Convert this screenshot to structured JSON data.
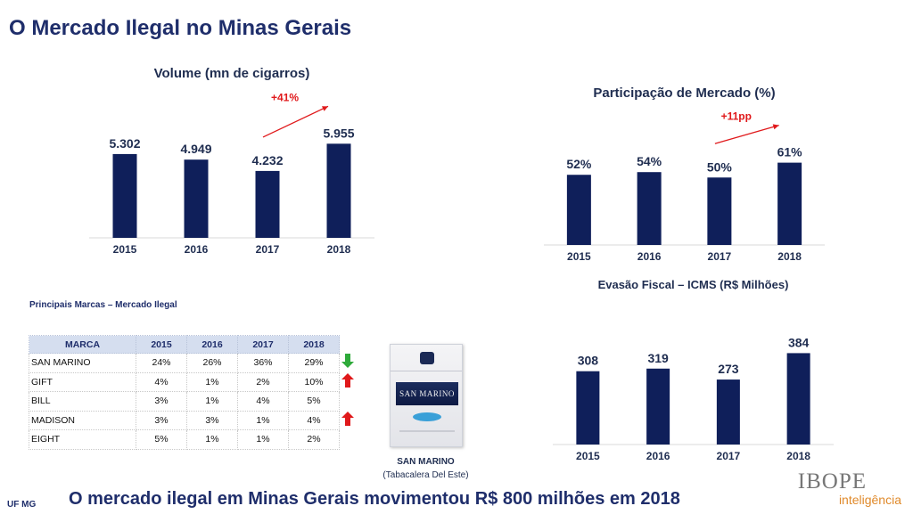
{
  "page": {
    "title": "O Mercado Ilegal no Minas Gerais",
    "footer_left": "UF MG",
    "footer_message": "O mercado ilegal em Minas Gerais movimentou R$ 800 milhões em 2018"
  },
  "chart_data": [
    {
      "id": "volume",
      "type": "bar",
      "title": "Volume (mn de cigarros)",
      "categories": [
        "2015",
        "2016",
        "2017",
        "2018"
      ],
      "values": [
        5302,
        4949,
        4232,
        5955
      ],
      "value_labels": [
        "5.302",
        "4.949",
        "4.232",
        "5.955"
      ],
      "ylim": [
        0,
        6650
      ],
      "annotation": "+41%",
      "bar_color": "#0f1f5a",
      "grid": false
    },
    {
      "id": "participacao",
      "type": "bar",
      "title": "Participação de Mercado (%)",
      "categories": [
        "2015",
        "2016",
        "2017",
        "2018"
      ],
      "values": [
        52,
        54,
        50,
        61
      ],
      "value_labels": [
        "52%",
        "54%",
        "50%",
        "61%"
      ],
      "ylim": [
        0,
        68
      ],
      "annotation": "+11pp",
      "bar_color": "#0f1f5a",
      "grid": false
    },
    {
      "id": "evasao",
      "type": "bar",
      "title": "Evasão Fiscal – ICMS (R$ Milhões)",
      "categories": [
        "2015",
        "2016",
        "2017",
        "2018"
      ],
      "values": [
        308,
        319,
        273,
        384
      ],
      "value_labels": [
        "308",
        "319",
        "273",
        "384"
      ],
      "ylim": [
        0,
        423
      ],
      "bar_color": "#0f1f5a",
      "grid": false
    },
    {
      "id": "principais-marcas",
      "type": "table",
      "title": "Principais Marcas – Mercado Ilegal",
      "columns": [
        "MARCA",
        "2015",
        "2016",
        "2017",
        "2018"
      ],
      "rows": [
        {
          "brand": "SAN MARINO",
          "values": [
            "24%",
            "26%",
            "36%",
            "29%"
          ],
          "trend": "down"
        },
        {
          "brand": "GIFT",
          "values": [
            "4%",
            "1%",
            "2%",
            "10%"
          ],
          "trend": "up"
        },
        {
          "brand": "BILL",
          "values": [
            "3%",
            "1%",
            "4%",
            "5%"
          ],
          "trend": ""
        },
        {
          "brand": "MADISON",
          "values": [
            "3%",
            "3%",
            "1%",
            "4%"
          ],
          "trend": "up"
        },
        {
          "brand": "EIGHT",
          "values": [
            "5%",
            "1%",
            "1%",
            "2%"
          ],
          "trend": ""
        }
      ]
    }
  ],
  "colors": {
    "bar": "#0f1f5a",
    "trend_up": "#e0191b",
    "trend_down": "#2eaa3a",
    "annotation": "#e0191b",
    "table_header": "#d5deef"
  },
  "product": {
    "brand_label": "SAN MARINO",
    "name": "SAN MARINO",
    "maker": "(Tabacalera Del Este)"
  },
  "logo": {
    "line1": "IBOPE",
    "line2": "inteligência"
  }
}
